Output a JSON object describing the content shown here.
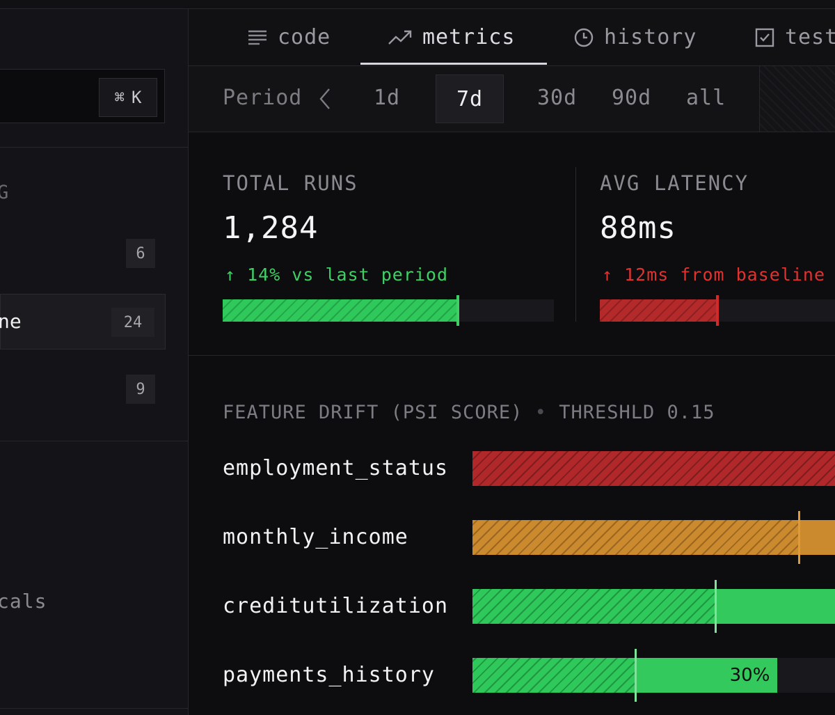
{
  "sidebar": {
    "search_shortcut": {
      "symbol": "⌘",
      "key": "K"
    },
    "section_heading": "G",
    "items": [
      {
        "label": "",
        "count": "6"
      },
      {
        "label": "ne",
        "count": "24",
        "active": true
      },
      {
        "label": "",
        "count": "9"
      }
    ],
    "footer_label": "cals"
  },
  "tabs": [
    {
      "label": "code",
      "icon": "lines-icon"
    },
    {
      "label": "metrics",
      "icon": "trend-icon",
      "active": true
    },
    {
      "label": "history",
      "icon": "clock-icon"
    },
    {
      "label": "test",
      "icon": "checkbox-icon"
    }
  ],
  "period": {
    "label": "Period",
    "options": [
      "1d",
      "7d",
      "30d",
      "90d",
      "all"
    ],
    "selected": "7d"
  },
  "stats": {
    "total_runs": {
      "label": "TOTAL RUNS",
      "value": "1,284",
      "delta": "↑ 14% vs last period",
      "fill_fraction": 0.71
    },
    "avg_latency": {
      "label": "AVG LATENCY",
      "value": "88ms",
      "delta": "↑ 12ms from baseline",
      "fill_fraction": 0.5
    }
  },
  "drift": {
    "title": "FEATURE DRIFT (PSI SCORE)",
    "separator": "•",
    "threshold": "THRESHLD 0.15",
    "features": [
      {
        "name": "employment_status",
        "status": "critical",
        "fill_fraction": 1.0,
        "hatched_fraction": 1.0,
        "marker_fraction": null
      },
      {
        "name": "monthly_income",
        "status": "warning",
        "fill_fraction": 1.0,
        "hatched_fraction": 0.9,
        "marker_fraction": 0.9
      },
      {
        "name": "creditutilization",
        "status": "ok",
        "fill_fraction": 1.0,
        "hatched_fraction": 0.67,
        "marker_fraction": 0.67
      },
      {
        "name": "payments_history",
        "status": "ok",
        "fill_fraction": 0.84,
        "hatched_fraction": 0.45,
        "marker_fraction": 0.45,
        "value_label": "30%"
      }
    ]
  },
  "colors": {
    "good": "#3fd065",
    "bad": "#e0322f",
    "warning": "#cc8a2e",
    "background": "#0d0d0f"
  }
}
